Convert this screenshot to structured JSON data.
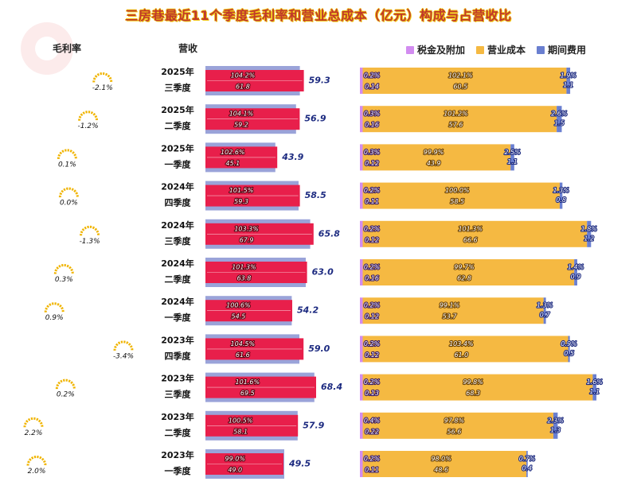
{
  "title": "三房巷最近11个季度毛利率和营业总成本（亿元）构成与占营收比",
  "headers": {
    "margin": "毛利率",
    "revenue": "营收"
  },
  "legend": [
    {
      "label": "税金及附加",
      "color": "#d28cf0"
    },
    {
      "label": "营业成本",
      "color": "#f5b942"
    },
    {
      "label": "期间费用",
      "color": "#6a7fd0"
    }
  ],
  "colors": {
    "revenue_bg": "#9aa3d9",
    "total_cost": "#e81f4b",
    "tax": "#d28cf0",
    "op_cost": "#f5b942",
    "period": "#6a7fd0",
    "gauge": "#f0b400"
  },
  "chart_data": {
    "type": "bar",
    "unit": "亿元",
    "quarters": [
      {
        "year": "2025年",
        "quarter": "三季度",
        "gross_margin": "-2.1%",
        "gross_margin_value": -2.1,
        "revenue": 59.3,
        "revenue_label": "59.3",
        "total_cost_pct": "104.2%",
        "total_cost": 61.8,
        "total_cost_label": "61.8",
        "tax_pct": "0.2%",
        "tax": 0.14,
        "tax_label": "0.14",
        "op_cost_pct": "102.1%",
        "op_cost": 60.5,
        "op_cost_label": "60.5",
        "period_pct": "1.9%",
        "period": 1.1,
        "period_label": "1.1"
      },
      {
        "year": "2025年",
        "quarter": "二季度",
        "gross_margin": "-1.2%",
        "gross_margin_value": -1.2,
        "revenue": 56.9,
        "revenue_label": "56.9",
        "total_cost_pct": "104.1%",
        "total_cost": 59.2,
        "total_cost_label": "59.2",
        "tax_pct": "0.3%",
        "tax": 0.16,
        "tax_label": "0.16",
        "op_cost_pct": "101.2%",
        "op_cost": 57.6,
        "op_cost_label": "57.6",
        "period_pct": "2.6%",
        "period": 1.5,
        "period_label": "1.5"
      },
      {
        "year": "2025年",
        "quarter": "一季度",
        "gross_margin": "0.1%",
        "gross_margin_value": 0.1,
        "revenue": 43.9,
        "revenue_label": "43.9",
        "total_cost_pct": "102.6%",
        "total_cost": 45.1,
        "total_cost_label": "45.1",
        "tax_pct": "0.3%",
        "tax": 0.12,
        "tax_label": "0.12",
        "op_cost_pct": "99.9%",
        "op_cost": 43.9,
        "op_cost_label": "43.9",
        "period_pct": "2.5%",
        "period": 1.1,
        "period_label": "1.1"
      },
      {
        "year": "2024年",
        "quarter": "四季度",
        "gross_margin": "0.0%",
        "gross_margin_value": 0.0,
        "revenue": 58.5,
        "revenue_label": "58.5",
        "total_cost_pct": "101.5%",
        "total_cost": 59.3,
        "total_cost_label": "59.3",
        "tax_pct": "0.2%",
        "tax": 0.11,
        "tax_label": "0.11",
        "op_cost_pct": "100.0%",
        "op_cost": 58.5,
        "op_cost_label": "58.5",
        "period_pct": "1.3%",
        "period": 0.8,
        "period_label": "0.8"
      },
      {
        "year": "2024年",
        "quarter": "三季度",
        "gross_margin": "-1.3%",
        "gross_margin_value": -1.3,
        "revenue": 65.8,
        "revenue_label": "65.8",
        "total_cost_pct": "103.3%",
        "total_cost": 67.9,
        "total_cost_label": "67.9",
        "tax_pct": "0.2%",
        "tax": 0.12,
        "tax_label": "0.12",
        "op_cost_pct": "101.3%",
        "op_cost": 66.6,
        "op_cost_label": "66.6",
        "period_pct": "1.8%",
        "period": 1.2,
        "period_label": "1.2"
      },
      {
        "year": "2024年",
        "quarter": "二季度",
        "gross_margin": "0.3%",
        "gross_margin_value": 0.3,
        "revenue": 63.0,
        "revenue_label": "63.0",
        "total_cost_pct": "101.3%",
        "total_cost": 63.8,
        "total_cost_label": "63.8",
        "tax_pct": "0.2%",
        "tax": 0.16,
        "tax_label": "0.16",
        "op_cost_pct": "99.7%",
        "op_cost": 62.8,
        "op_cost_label": "62.8",
        "period_pct": "1.4%",
        "period": 0.9,
        "period_label": "0.9"
      },
      {
        "year": "2024年",
        "quarter": "一季度",
        "gross_margin": "0.9%",
        "gross_margin_value": 0.9,
        "revenue": 54.2,
        "revenue_label": "54.2",
        "total_cost_pct": "100.6%",
        "total_cost": 54.5,
        "total_cost_label": "54.5",
        "tax_pct": "0.2%",
        "tax": 0.12,
        "tax_label": "0.12",
        "op_cost_pct": "99.1%",
        "op_cost": 53.7,
        "op_cost_label": "53.7",
        "period_pct": "1.3%",
        "period": 0.7,
        "period_label": "0.7"
      },
      {
        "year": "2023年",
        "quarter": "四季度",
        "gross_margin": "-3.4%",
        "gross_margin_value": -3.4,
        "revenue": 59.0,
        "revenue_label": "59.0",
        "total_cost_pct": "104.5%",
        "total_cost": 61.6,
        "total_cost_label": "61.6",
        "tax_pct": "0.2%",
        "tax": 0.12,
        "tax_label": "0.12",
        "op_cost_pct": "103.4%",
        "op_cost": 61.0,
        "op_cost_label": "61.0",
        "period_pct": "0.9%",
        "period": 0.5,
        "period_label": "0.5"
      },
      {
        "year": "2023年",
        "quarter": "三季度",
        "gross_margin": "0.2%",
        "gross_margin_value": 0.2,
        "revenue": 68.4,
        "revenue_label": "68.4",
        "total_cost_pct": "101.6%",
        "total_cost": 69.5,
        "total_cost_label": "69.5",
        "tax_pct": "0.2%",
        "tax": 0.13,
        "tax_label": "0.13",
        "op_cost_pct": "99.8%",
        "op_cost": 68.3,
        "op_cost_label": "68.3",
        "period_pct": "1.6%",
        "period": 1.1,
        "period_label": "1.1"
      },
      {
        "year": "2023年",
        "quarter": "二季度",
        "gross_margin": "2.2%",
        "gross_margin_value": 2.2,
        "revenue": 57.9,
        "revenue_label": "57.9",
        "total_cost_pct": "100.5%",
        "total_cost": 58.1,
        "total_cost_label": "58.1",
        "tax_pct": "0.4%",
        "tax": 0.22,
        "tax_label": "0.22",
        "op_cost_pct": "97.8%",
        "op_cost": 56.6,
        "op_cost_label": "56.6",
        "period_pct": "2.3%",
        "period": 1.3,
        "period_label": "1.3"
      },
      {
        "year": "2023年",
        "quarter": "一季度",
        "gross_margin": "2.0%",
        "gross_margin_value": 2.0,
        "revenue": 49.5,
        "revenue_label": "49.5",
        "total_cost_pct": "99.0%",
        "total_cost": 49.0,
        "total_cost_label": "49.0",
        "tax_pct": "0.2%",
        "tax": 0.11,
        "tax_label": "0.11",
        "op_cost_pct": "98.0%",
        "op_cost": 48.6,
        "op_cost_label": "48.6",
        "period_pct": "0.7%",
        "period": 0.4,
        "period_label": "0.4"
      }
    ]
  }
}
